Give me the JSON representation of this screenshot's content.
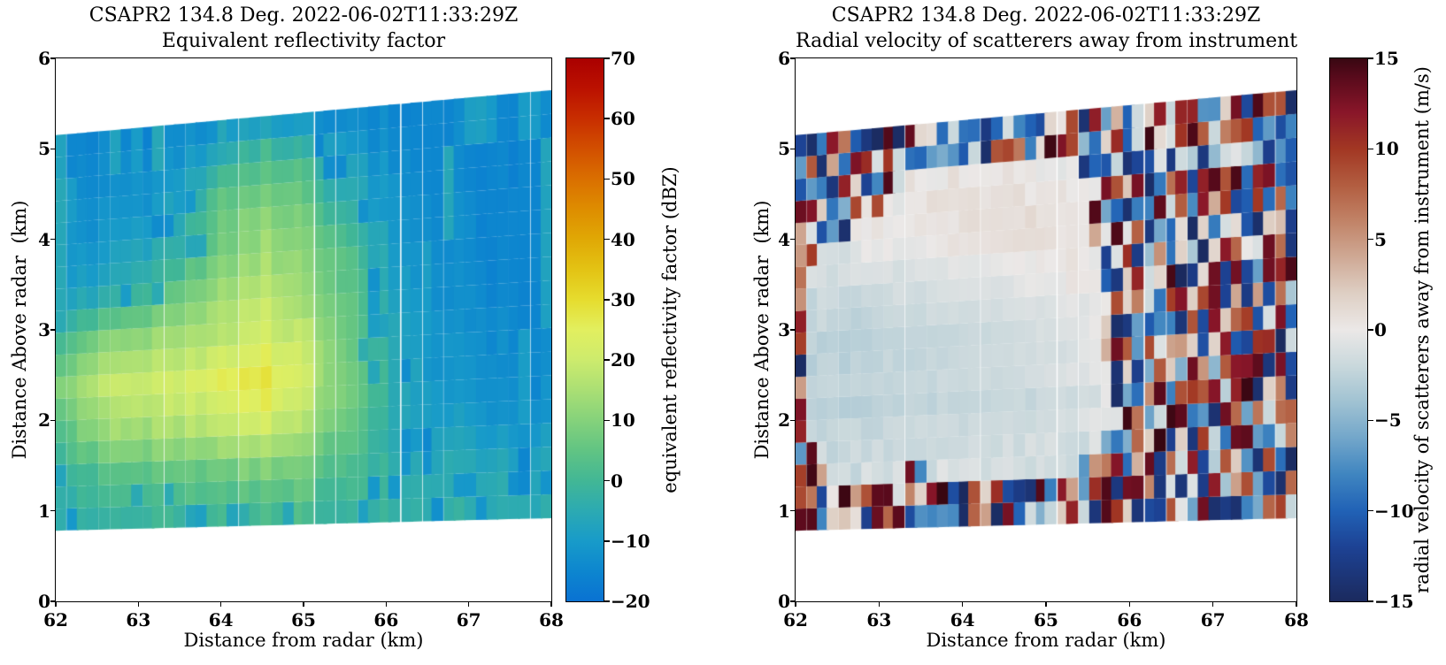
{
  "figure": {
    "background": "#ffffff"
  },
  "panels": [
    {
      "title_line1": "CSAPR2 134.8 Deg. 2022-06-02T11:33:29Z",
      "title_line2": "Equivalent reflectivity factor",
      "xlabel": "Distance from radar (km)",
      "ylabel": "Distance Above radar  (km)",
      "x_ticks": [
        {
          "v": 62,
          "label": "62"
        },
        {
          "v": 63,
          "label": "63"
        },
        {
          "v": 64,
          "label": "64"
        },
        {
          "v": 65,
          "label": "65"
        },
        {
          "v": 66,
          "label": "66"
        },
        {
          "v": 67,
          "label": "67"
        },
        {
          "v": 68,
          "label": "68"
        }
      ],
      "y_ticks": [
        {
          "v": 0,
          "label": "0"
        },
        {
          "v": 1,
          "label": "1"
        },
        {
          "v": 2,
          "label": "2"
        },
        {
          "v": 3,
          "label": "3"
        },
        {
          "v": 4,
          "label": "4"
        },
        {
          "v": 5,
          "label": "5"
        },
        {
          "v": 6,
          "label": "6"
        }
      ],
      "colorbar": {
        "label": "equivalent reflectivity factor (dBZ)",
        "min": -20,
        "max": 70,
        "ticks": [
          {
            "v": 70,
            "label": "70"
          },
          {
            "v": 60,
            "label": "60"
          },
          {
            "v": 50,
            "label": "50"
          },
          {
            "v": 40,
            "label": "40"
          },
          {
            "v": 30,
            "label": "30"
          },
          {
            "v": 20,
            "label": "20"
          },
          {
            "v": 10,
            "label": "10"
          },
          {
            "v": 0,
            "label": "0"
          },
          {
            "v": -10,
            "label": "−10"
          },
          {
            "v": -20,
            "label": "−20"
          }
        ],
        "stops": [
          [
            -20,
            "#0a72d2"
          ],
          [
            -15,
            "#0d86cf"
          ],
          [
            -10,
            "#189bc9"
          ],
          [
            -5,
            "#2caab2"
          ],
          [
            0,
            "#42b795"
          ],
          [
            5,
            "#61c483"
          ],
          [
            10,
            "#85d27b"
          ],
          [
            15,
            "#aadf74"
          ],
          [
            20,
            "#cdeb6d"
          ],
          [
            25,
            "#e2ef5f"
          ],
          [
            30,
            "#e6dc2e"
          ],
          [
            35,
            "#e3c314"
          ],
          [
            40,
            "#e0a805"
          ],
          [
            45,
            "#de8d00"
          ],
          [
            50,
            "#da6f00"
          ],
          [
            55,
            "#d24f00"
          ],
          [
            60,
            "#c82e00"
          ],
          [
            65,
            "#bb1100"
          ],
          [
            70,
            "#aa0000"
          ]
        ]
      }
    },
    {
      "title_line1": "CSAPR2 134.8 Deg. 2022-06-02T11:33:29Z",
      "title_line2": "Radial velocity of scatterers away from instrument",
      "xlabel": "Distance from radar (km)",
      "ylabel": "Distance Above radar  (km)",
      "x_ticks": [
        {
          "v": 62,
          "label": "62"
        },
        {
          "v": 63,
          "label": "63"
        },
        {
          "v": 64,
          "label": "64"
        },
        {
          "v": 65,
          "label": "65"
        },
        {
          "v": 66,
          "label": "66"
        },
        {
          "v": 67,
          "label": "67"
        },
        {
          "v": 68,
          "label": "68"
        }
      ],
      "y_ticks": [
        {
          "v": 0,
          "label": "0"
        },
        {
          "v": 1,
          "label": "1"
        },
        {
          "v": 2,
          "label": "2"
        },
        {
          "v": 3,
          "label": "3"
        },
        {
          "v": 4,
          "label": "4"
        },
        {
          "v": 5,
          "label": "5"
        },
        {
          "v": 6,
          "label": "6"
        }
      ],
      "colorbar": {
        "label": "radial velocity of scatterers away from instrument (m/s)",
        "min": -15,
        "max": 15,
        "ticks": [
          {
            "v": 15,
            "label": "15"
          },
          {
            "v": 10,
            "label": "10"
          },
          {
            "v": 5,
            "label": "5"
          },
          {
            "v": 0,
            "label": "0"
          },
          {
            "v": -5,
            "label": "−5"
          },
          {
            "v": -10,
            "label": "−10"
          },
          {
            "v": -15,
            "label": "−15"
          }
        ],
        "stops": [
          [
            -15,
            "#1b2a5e"
          ],
          [
            -12,
            "#1d4294"
          ],
          [
            -10,
            "#2162b6"
          ],
          [
            -8,
            "#3f85c0"
          ],
          [
            -6,
            "#72a6ca"
          ],
          [
            -4,
            "#a0c2d2"
          ],
          [
            -2,
            "#c9d8dc"
          ],
          [
            0,
            "#ebe8e7"
          ],
          [
            2,
            "#decfc4"
          ],
          [
            4,
            "#cfa995"
          ],
          [
            6,
            "#c18367"
          ],
          [
            8,
            "#b25d40"
          ],
          [
            10,
            "#a23723"
          ],
          [
            12,
            "#891629"
          ],
          [
            14,
            "#570a1b"
          ],
          [
            15,
            "#380712"
          ]
        ]
      }
    }
  ],
  "chart_data": [
    {
      "type": "heatmap",
      "title": "CSAPR2 134.8 Deg. 2022-06-02T11:33:29Z — Equivalent reflectivity factor",
      "xlabel": "Distance from radar (km)",
      "ylabel": "Distance Above radar  (km)",
      "xlim": [
        62,
        68
      ],
      "ylim": [
        0,
        6
      ],
      "colorbar_label": "equivalent reflectivity factor (dBZ)",
      "clim": [
        -20,
        70
      ],
      "sweep_geometry": {
        "bottom_km_at_x62_x68": [
          0.78,
          0.92
        ],
        "top_km_at_x62_x68": [
          5.15,
          5.65
        ],
        "rays": 18,
        "gates": 46
      },
      "grid_x": [
        62,
        62.5,
        63,
        63.5,
        64,
        64.5,
        65,
        65.5,
        66,
        66.5,
        67,
        67.5,
        68
      ],
      "grid_y": [
        0.9,
        1.4,
        1.9,
        2.4,
        2.9,
        3.4,
        3.9,
        4.4,
        4.9,
        5.4
      ],
      "values_dbz": [
        [
          -3,
          -2,
          -2,
          -1,
          0,
          1,
          0,
          -2,
          -3,
          -4,
          -4,
          -4,
          -4
        ],
        [
          -2,
          2,
          4,
          5,
          7,
          8,
          6,
          2,
          -3,
          -4,
          -5,
          -5,
          -5
        ],
        [
          4,
          12,
          14,
          15,
          18,
          21,
          14,
          6,
          -4,
          -8,
          -10,
          -11,
          -11
        ],
        [
          10,
          17,
          19,
          21,
          26,
          30,
          20,
          10,
          -2,
          -10,
          -12,
          -13,
          -13
        ],
        [
          0,
          8,
          12,
          14,
          18,
          22,
          18,
          8,
          -4,
          -11,
          -13,
          -13,
          -14
        ],
        [
          -10,
          -6,
          -2,
          6,
          14,
          18,
          12,
          6,
          -6,
          -12,
          -14,
          -14,
          -14
        ],
        [
          -13,
          -11,
          -8,
          -4,
          8,
          14,
          10,
          4,
          -8,
          -13,
          -14,
          -15,
          -15
        ],
        [
          -14,
          -13,
          -12,
          -8,
          6,
          10,
          6,
          -4,
          -10,
          -14,
          -15,
          -15,
          -15
        ],
        [
          -15,
          -14,
          -14,
          -12,
          -4,
          3,
          0,
          -8,
          -12,
          -15,
          -15,
          -15,
          -15
        ],
        [
          -16,
          -15,
          -15,
          -15,
          -14,
          -13,
          -13,
          -14,
          -15,
          -15,
          -15,
          -15,
          -15
        ]
      ],
      "clear_air_background_dbz": -15.5
    },
    {
      "type": "heatmap",
      "title": "CSAPR2 134.8 Deg. 2022-06-02T11:33:29Z — Radial velocity of scatterers away from instrument",
      "xlabel": "Distance from radar (km)",
      "ylabel": "Distance Above radar  (km)",
      "xlim": [
        62,
        68
      ],
      "ylim": [
        0,
        6
      ],
      "colorbar_label": "radial velocity of scatterers away from instrument (m/s)",
      "clim": [
        -15,
        15
      ],
      "sweep_geometry": {
        "bottom_km_at_x62_x68": [
          0.78,
          0.92
        ],
        "top_km_at_x62_x68": [
          5.15,
          5.65
        ],
        "rays": 18,
        "gates": 46
      },
      "grid_x": [
        62,
        62.5,
        63,
        63.5,
        64,
        64.5,
        65,
        65.5,
        66,
        66.5,
        67,
        67.5,
        68
      ],
      "grid_y": [
        0.9,
        1.4,
        1.9,
        2.4,
        2.9,
        3.4,
        3.9,
        4.4,
        4.9,
        5.4
      ],
      "values_ms": [
        [
          0,
          0,
          0,
          0,
          0,
          0,
          0,
          0,
          0,
          0,
          0,
          0,
          0
        ],
        [
          -1.5,
          -1.4,
          -1.2,
          -1.1,
          -1,
          -1,
          -1,
          -1,
          0,
          0,
          0,
          0,
          0
        ],
        [
          -2.2,
          -2.1,
          -2,
          -1.8,
          -1.6,
          -1.5,
          -1.2,
          -1,
          0,
          0,
          0,
          0,
          0
        ],
        [
          -2.8,
          -2.8,
          -2.6,
          -2.5,
          -2.2,
          -2,
          -1.8,
          -1.2,
          -0.5,
          0,
          0,
          0,
          0
        ],
        [
          -3,
          -3,
          -2.8,
          -2.5,
          -2.3,
          -2,
          -1.5,
          -1,
          -0.5,
          0,
          0,
          0,
          0
        ],
        [
          -2.4,
          -2.2,
          -2,
          -1.8,
          -1.5,
          -1.2,
          -0.8,
          -0.4,
          0,
          0,
          0,
          0,
          0
        ],
        [
          -1.2,
          -1,
          -0.7,
          -0.3,
          0,
          0.2,
          0.3,
          0.2,
          0,
          0,
          0,
          0,
          0
        ],
        [
          0,
          0,
          0.2,
          0.5,
          0.7,
          0.9,
          0.7,
          0.4,
          0,
          0,
          0,
          0,
          0
        ],
        [
          0,
          0,
          0.3,
          0.5,
          0.8,
          0.8,
          0.6,
          0.4,
          0,
          0,
          0,
          0,
          0
        ],
        [
          0,
          0,
          0,
          0,
          0,
          0,
          0,
          0,
          0,
          0,
          0,
          0,
          0
        ]
      ],
      "noise_mask": [
        [
          1,
          1,
          1,
          1,
          1,
          1,
          1,
          1,
          1,
          1,
          1,
          1,
          1
        ],
        [
          0.8,
          0.45,
          0.4,
          0.5,
          0.45,
          0.4,
          0.35,
          0.6,
          1,
          1,
          1,
          1,
          1
        ],
        [
          0.55,
          0.1,
          0.05,
          0.05,
          0.05,
          0.05,
          0.1,
          0.35,
          1,
          1,
          1,
          1,
          1
        ],
        [
          0.5,
          0.05,
          0,
          0,
          0,
          0,
          0.05,
          0.2,
          0.8,
          1,
          1,
          1,
          1
        ],
        [
          0.5,
          0.05,
          0,
          0,
          0,
          0,
          0.05,
          0.2,
          0.85,
          1,
          1,
          1,
          1
        ],
        [
          0.6,
          0.15,
          0.05,
          0,
          0,
          0,
          0.05,
          0.3,
          0.95,
          1,
          1,
          1,
          1
        ],
        [
          0.8,
          0.5,
          0.35,
          0.15,
          0.05,
          0.05,
          0.1,
          0.35,
          1,
          1,
          1,
          1,
          1
        ],
        [
          1,
          0.8,
          0.6,
          0.3,
          0.1,
          0.1,
          0.2,
          0.5,
          1,
          1,
          1,
          1,
          1
        ],
        [
          1,
          1,
          0.9,
          0.7,
          0.45,
          0.4,
          0.5,
          0.8,
          1,
          1,
          1,
          1,
          1
        ],
        [
          1,
          1,
          1,
          1,
          1,
          1,
          1,
          1,
          1,
          1,
          1,
          1,
          1
        ]
      ]
    }
  ]
}
